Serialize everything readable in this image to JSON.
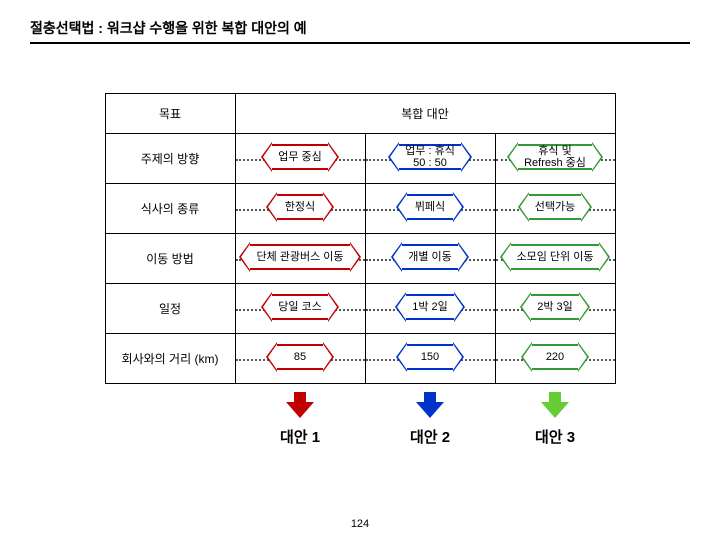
{
  "title": "절충선택법  :  워크샵 수행을 위한 복합 대안의 예",
  "headers": {
    "goal": "목표",
    "alt": "복합 대안"
  },
  "rows": [
    {
      "label": "주제의 방향",
      "opts": [
        "업무 중심",
        "업무 : 휴식\n50 : 50",
        "휴식 및\nRefresh 중심"
      ]
    },
    {
      "label": "식사의 종류",
      "opts": [
        "한정식",
        "뷔페식",
        "선택가능"
      ]
    },
    {
      "label": "이동 방법",
      "opts": [
        "단체 관광버스 이동",
        "개별 이동",
        "소모임 단위 이동"
      ]
    },
    {
      "label": "일정",
      "opts": [
        "당일 코스",
        "1박 2일",
        "2박 3일"
      ]
    },
    {
      "label": "회사와의 거리 (km)",
      "opts": [
        "85",
        "150",
        "220"
      ]
    }
  ],
  "colors": {
    "c0": "#c00000",
    "c1": "#0033cc",
    "c2": "#339933",
    "arrow2": "#66cc33"
  },
  "altLabels": [
    "대안 1",
    "대안 2",
    "대안 3"
  ],
  "pageNumber": "124"
}
